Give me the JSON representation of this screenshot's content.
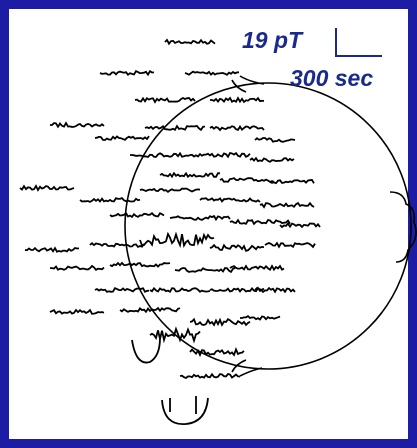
{
  "scale_bar": {
    "amplitude": "19 pT",
    "duration": "300 sec"
  }
}
